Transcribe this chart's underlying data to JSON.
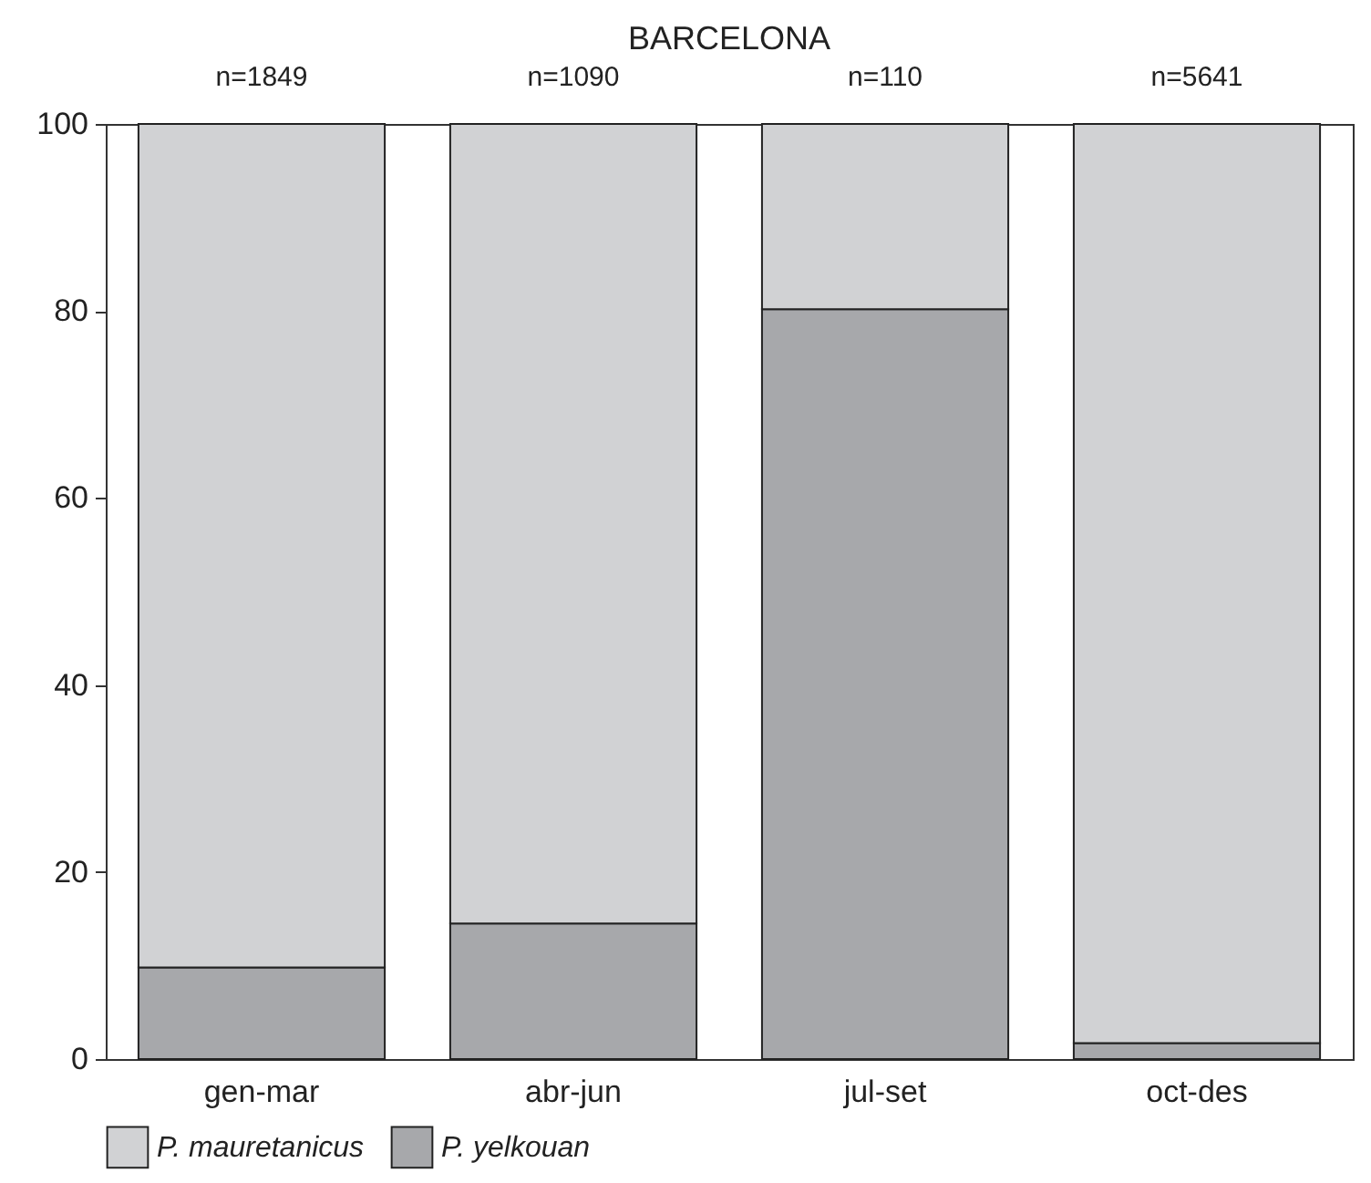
{
  "chart_data": {
    "type": "bar",
    "title": "BARCELONA",
    "stacked": true,
    "categories": [
      "gen-mar",
      "abr-jun",
      "jul-set",
      "oct-des"
    ],
    "series": [
      {
        "name": "P. yelkouan",
        "color": "#a7a8ab",
        "values": [
          9.8,
          14.5,
          80.2,
          1.7
        ]
      },
      {
        "name": "P. mauretanicus",
        "color": "#d1d2d4",
        "values": [
          90.2,
          85.5,
          19.8,
          98.3
        ]
      }
    ],
    "ylim": [
      0,
      100
    ],
    "yticks": [
      0,
      20,
      40,
      60,
      80,
      100
    ],
    "grid": false,
    "legend": "bottom",
    "annotations": [
      "n=1849",
      "n=1090",
      "n=110",
      "n=5641"
    ]
  }
}
